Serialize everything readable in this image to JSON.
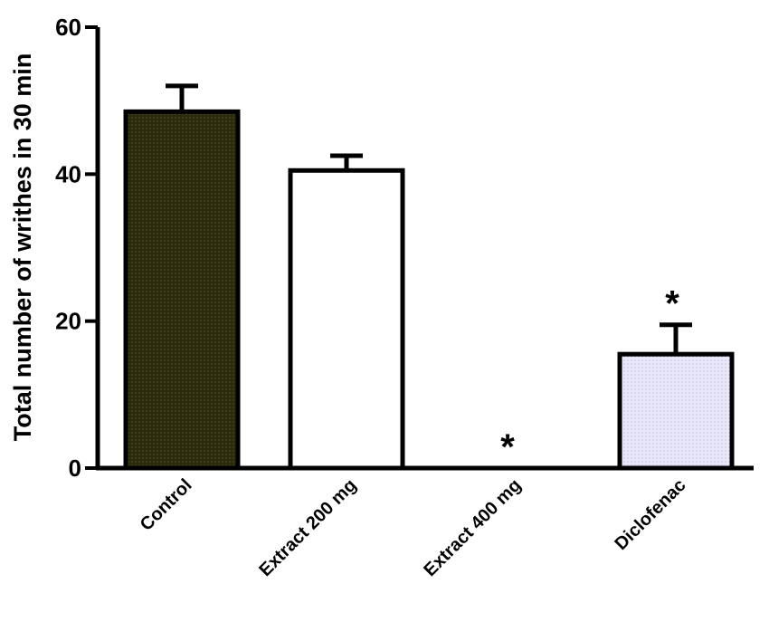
{
  "chart_data": {
    "type": "bar",
    "title": "",
    "xlabel": "",
    "ylabel": "Total number of writhes in 30 min",
    "ylim": [
      0,
      60
    ],
    "yticks": [
      0,
      20,
      40,
      60
    ],
    "categories": [
      "Control",
      "Extract  200 mg",
      "Extract  400 mg",
      "Diclofenac"
    ],
    "values": [
      48.5,
      40.5,
      0,
      15.5
    ],
    "errors": [
      3.5,
      2.0,
      0,
      4.0
    ],
    "significance": [
      "",
      "",
      "*",
      "*"
    ],
    "colors": [
      "#2b2a0c",
      "#ffffff",
      "#ffffff",
      "#e4e4f7"
    ],
    "grid": false
  }
}
